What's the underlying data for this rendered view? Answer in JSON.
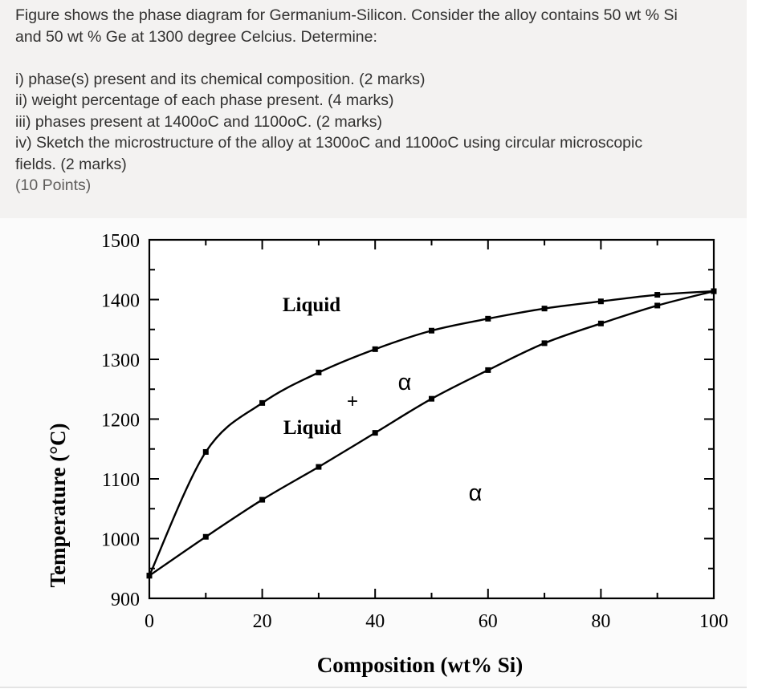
{
  "question": {
    "line1": "Figure shows the phase diagram for Germanium-Silicon. Consider the alloy contains 50 wt % Si",
    "line2": "and 50 wt % Ge at 1300 degree Celcius. Determine:",
    "items": [
      "i) phase(s) present and its chemical composition. (2 marks)",
      "ii) weight percentage of each phase present. (4 marks)",
      "iii) phases present at 1400oC and 1100oC. (2 marks)",
      "iv) Sketch the microstructure of the alloy at 1300oC and 1100oC using circular microscopic",
      "fields. (2 marks)"
    ],
    "points": "(10 Points)"
  },
  "chart_data": {
    "type": "line",
    "xlabel": "Composition (wt% Si)",
    "ylabel": "Temperature (°C)",
    "xlim": [
      0,
      100
    ],
    "ylim": [
      900,
      1500
    ],
    "x_ticks": [
      0,
      20,
      40,
      60,
      80,
      100
    ],
    "y_ticks": [
      900,
      1000,
      1100,
      1200,
      1300,
      1400,
      1500
    ],
    "grid": false,
    "colors": {
      "line": "#000000",
      "axis": "#000000",
      "background": "#ffffff"
    },
    "series": [
      {
        "x": [
          0,
          10,
          20,
          30,
          40,
          50,
          60,
          70,
          80,
          90,
          100
        ],
        "y": [
          938,
          1145,
          1227,
          1278,
          1317,
          1348,
          1368,
          1385,
          1397,
          1408,
          1414
        ]
      },
      {
        "x": [
          0,
          10,
          20,
          30,
          40,
          50,
          60,
          70,
          80,
          90,
          100
        ],
        "y": [
          938,
          1003,
          1065,
          1120,
          1177,
          1234,
          1282,
          1327,
          1360,
          1390,
          1414
        ]
      }
    ],
    "annotations": {
      "liquid_top": "Liquid",
      "alpha_mid": "α",
      "plus": "+",
      "liquid_mid": "Liquid",
      "alpha_low": "α"
    }
  }
}
